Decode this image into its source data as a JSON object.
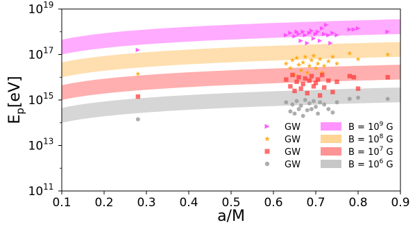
{
  "chart_data": {
    "type": "scatter",
    "xlabel": "a/M",
    "ylabel_main": "E",
    "ylabel_sub": "p",
    "ylabel_unit": "[eV]",
    "xlim": [
      0.1,
      0.9
    ],
    "ylim_log10": [
      11,
      19
    ],
    "log_y": true,
    "x_ticks": [
      {
        "value": 0.1,
        "label": "0.1"
      },
      {
        "value": 0.2,
        "label": "0.2"
      },
      {
        "value": 0.3,
        "label": "0.3"
      },
      {
        "value": 0.4,
        "label": "0.4"
      },
      {
        "value": 0.5,
        "label": "0.5"
      },
      {
        "value": 0.6,
        "label": "0.6"
      },
      {
        "value": 0.7,
        "label": "0.7"
      },
      {
        "value": 0.8,
        "label": "0.8"
      },
      {
        "value": 0.9,
        "label": "0.9"
      }
    ],
    "y_ticks": [
      {
        "exp": 11,
        "base": "10",
        "sup": "11"
      },
      {
        "exp": 13,
        "base": "10",
        "sup": "13"
      },
      {
        "exp": 15,
        "base": "10",
        "sup": "15"
      },
      {
        "exp": 17,
        "base": "10",
        "sup": "17"
      },
      {
        "exp": 19,
        "base": "10",
        "sup": "19"
      }
    ],
    "legend_position": "lower-right",
    "bands": [
      {
        "label_pre": "B = 10",
        "label_sup": "9",
        "label_post": " G",
        "color": "#ff66ff",
        "opacity": 0.55,
        "lower_at_01": 17.0,
        "upper_at_01": 17.65,
        "lower_at_09": 17.9,
        "upper_at_09": 18.55
      },
      {
        "label_pre": "B = 10",
        "label_sup": "8",
        "label_post": " G",
        "color": "#ffb84d",
        "opacity": 0.45,
        "lower_at_01": 16.0,
        "upper_at_01": 16.65,
        "lower_at_09": 16.9,
        "upper_at_09": 17.55
      },
      {
        "label_pre": "B = 10",
        "label_sup": "7",
        "label_post": " G",
        "color": "#ff4d4d",
        "opacity": 0.45,
        "lower_at_01": 15.0,
        "upper_at_01": 15.65,
        "lower_at_09": 15.9,
        "upper_at_09": 16.55
      },
      {
        "label_pre": "B = 10",
        "label_sup": "6",
        "label_post": " G",
        "color": "#999999",
        "opacity": 0.4,
        "lower_at_01": 14.0,
        "upper_at_01": 14.65,
        "lower_at_09": 14.9,
        "upper_at_09": 15.55
      }
    ],
    "series": [
      {
        "name": "GW",
        "marker": "triangle-right",
        "color": "#ff40ff",
        "points": [
          [
            0.28,
            17.2
          ],
          [
            0.63,
            17.85
          ],
          [
            0.64,
            17.95
          ],
          [
            0.65,
            17.8
          ],
          [
            0.655,
            18.0
          ],
          [
            0.66,
            17.9
          ],
          [
            0.665,
            17.6
          ],
          [
            0.67,
            18.0
          ],
          [
            0.675,
            17.85
          ],
          [
            0.68,
            17.5
          ],
          [
            0.685,
            17.95
          ],
          [
            0.69,
            18.05
          ],
          [
            0.695,
            17.7
          ],
          [
            0.7,
            17.9
          ],
          [
            0.705,
            18.0
          ],
          [
            0.71,
            17.6
          ],
          [
            0.715,
            18.15
          ],
          [
            0.72,
            17.9
          ],
          [
            0.725,
            18.3
          ],
          [
            0.73,
            17.85
          ],
          [
            0.735,
            17.5
          ],
          [
            0.74,
            17.95
          ],
          [
            0.75,
            17.85
          ],
          [
            0.78,
            18.1
          ],
          [
            0.79,
            18.1
          ],
          [
            0.8,
            18.15
          ],
          [
            0.87,
            18.0
          ]
        ]
      },
      {
        "name": "GW",
        "marker": "star",
        "color": "#ffa500",
        "points": [
          [
            0.28,
            16.15
          ],
          [
            0.63,
            16.6
          ],
          [
            0.64,
            16.4
          ],
          [
            0.645,
            16.75
          ],
          [
            0.65,
            16.1
          ],
          [
            0.655,
            16.85
          ],
          [
            0.66,
            16.55
          ],
          [
            0.665,
            16.3
          ],
          [
            0.67,
            16.65
          ],
          [
            0.675,
            16.9
          ],
          [
            0.68,
            16.2
          ],
          [
            0.685,
            16.5
          ],
          [
            0.69,
            16.75
          ],
          [
            0.695,
            16.95
          ],
          [
            0.7,
            16.4
          ],
          [
            0.705,
            16.6
          ],
          [
            0.71,
            16.8
          ],
          [
            0.715,
            16.2
          ],
          [
            0.72,
            16.5
          ],
          [
            0.73,
            16.7
          ],
          [
            0.74,
            16.9
          ],
          [
            0.75,
            16.6
          ],
          [
            0.78,
            17.05
          ],
          [
            0.8,
            16.8
          ],
          [
            0.87,
            17.0
          ]
        ]
      },
      {
        "name": "GW",
        "marker": "square",
        "color": "#ff3333",
        "points": [
          [
            0.28,
            15.15
          ],
          [
            0.63,
            15.9
          ],
          [
            0.64,
            15.6
          ],
          [
            0.645,
            16.1
          ],
          [
            0.65,
            15.4
          ],
          [
            0.655,
            15.8
          ],
          [
            0.66,
            16.0
          ],
          [
            0.665,
            15.5
          ],
          [
            0.67,
            15.7
          ],
          [
            0.675,
            15.95
          ],
          [
            0.68,
            15.3
          ],
          [
            0.685,
            15.85
          ],
          [
            0.69,
            16.05
          ],
          [
            0.695,
            15.6
          ],
          [
            0.7,
            15.75
          ],
          [
            0.705,
            15.9
          ],
          [
            0.71,
            15.2
          ],
          [
            0.715,
            16.1
          ],
          [
            0.72,
            15.55
          ],
          [
            0.73,
            15.85
          ],
          [
            0.74,
            15.35
          ],
          [
            0.75,
            15.8
          ],
          [
            0.78,
            16.05
          ],
          [
            0.79,
            16.0
          ],
          [
            0.8,
            15.5
          ],
          [
            0.87,
            16.0
          ]
        ]
      },
      {
        "name": "GW",
        "marker": "hexagon",
        "color": "#999999",
        "points": [
          [
            0.28,
            14.15
          ],
          [
            0.63,
            14.9
          ],
          [
            0.64,
            14.5
          ],
          [
            0.645,
            14.8
          ],
          [
            0.65,
            14.4
          ],
          [
            0.655,
            14.95
          ],
          [
            0.66,
            14.6
          ],
          [
            0.665,
            14.75
          ],
          [
            0.67,
            14.3
          ],
          [
            0.675,
            15.0
          ],
          [
            0.68,
            14.55
          ],
          [
            0.685,
            14.85
          ],
          [
            0.69,
            14.6
          ],
          [
            0.695,
            14.95
          ],
          [
            0.7,
            14.7
          ],
          [
            0.705,
            14.4
          ],
          [
            0.71,
            14.9
          ],
          [
            0.72,
            14.8
          ],
          [
            0.73,
            14.6
          ],
          [
            0.74,
            14.45
          ],
          [
            0.75,
            14.9
          ],
          [
            0.78,
            15.05
          ],
          [
            0.8,
            15.1
          ],
          [
            0.87,
            15.05
          ]
        ]
      }
    ]
  }
}
